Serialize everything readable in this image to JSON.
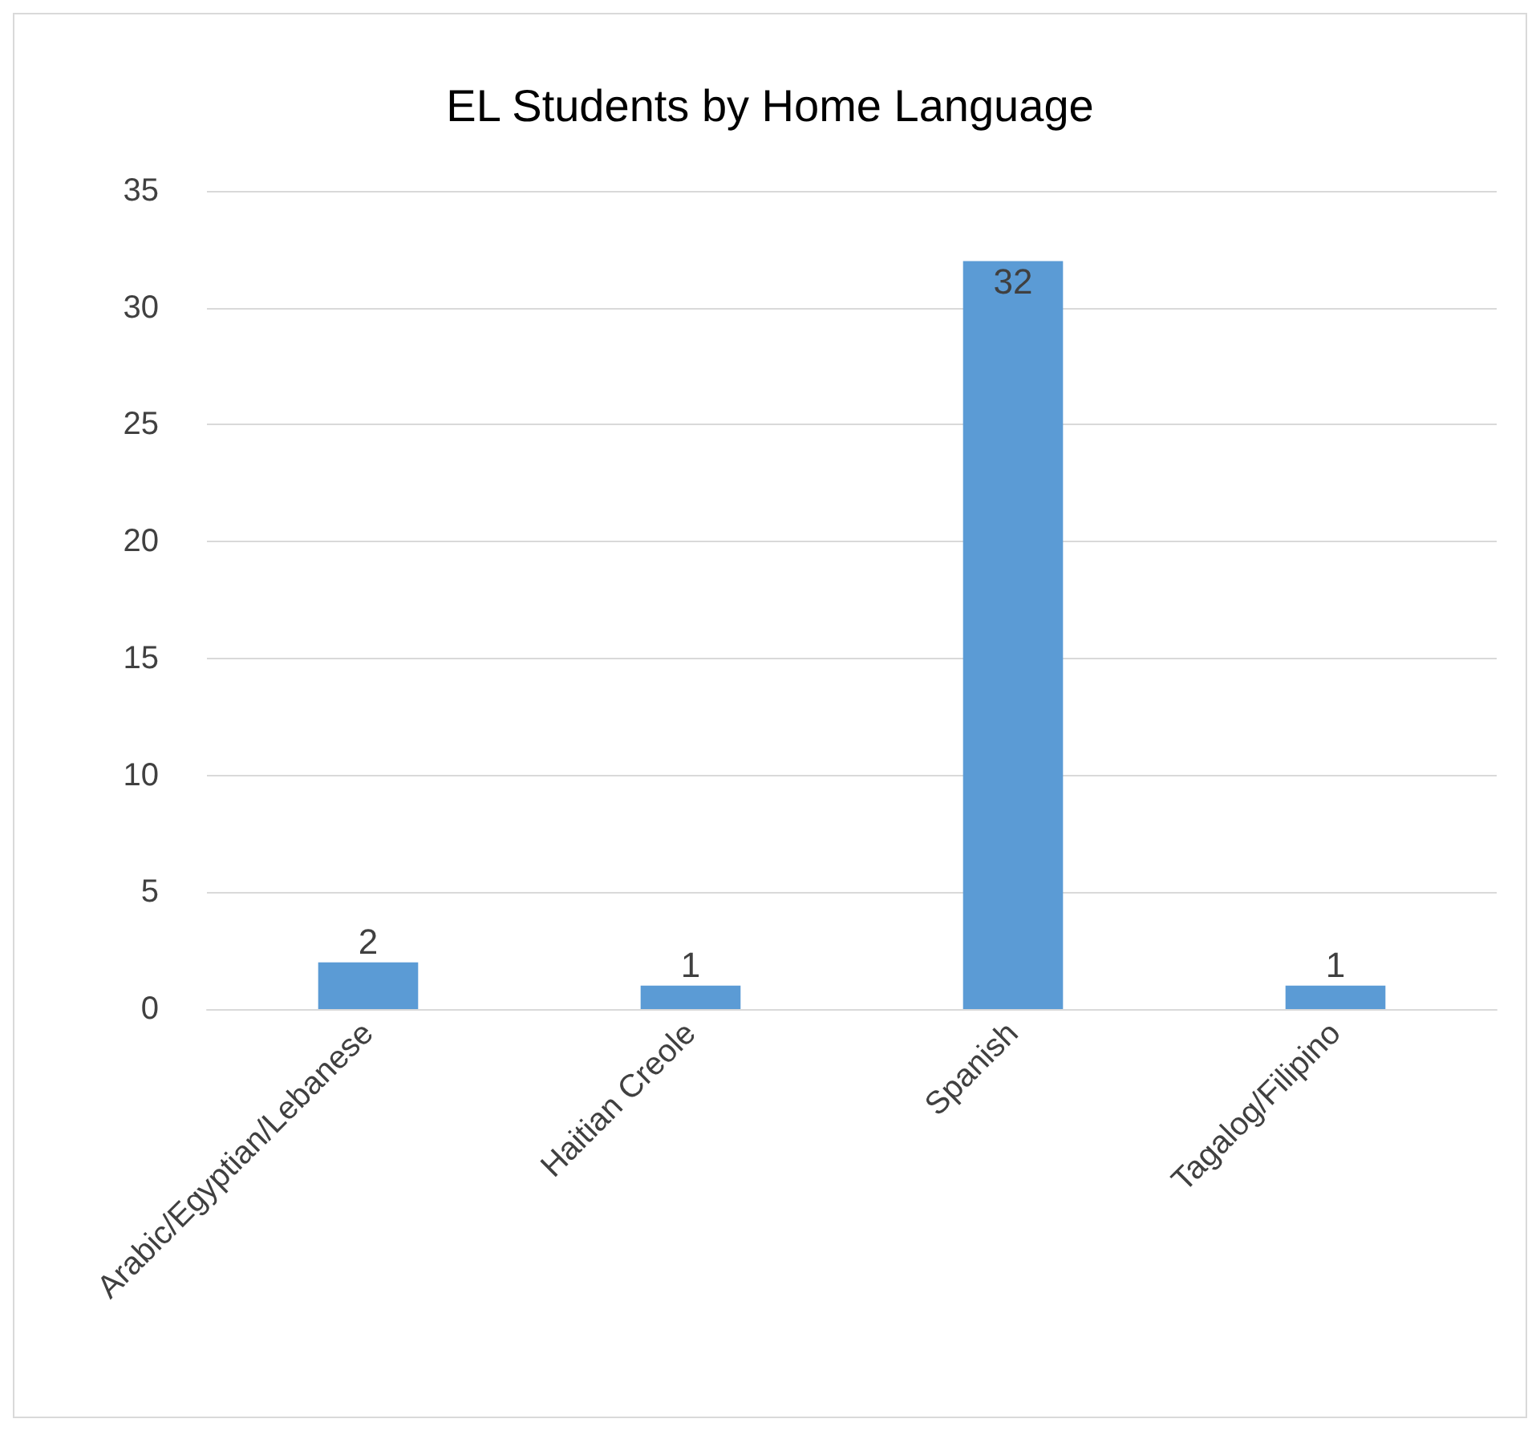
{
  "chart_data": {
    "type": "bar",
    "title": "EL Students by Home Language",
    "categories": [
      "Arabic/Egyptian/Lebanese",
      "Haitian Creole",
      "Spanish",
      "Tagalog/Filipino"
    ],
    "values": [
      2,
      1,
      32,
      1
    ],
    "color": "#5b9bd5",
    "ylim": [
      0,
      35
    ],
    "yticks": [
      0,
      5,
      10,
      15,
      20,
      25,
      30,
      35
    ],
    "grid": "y",
    "data_labels": true
  }
}
